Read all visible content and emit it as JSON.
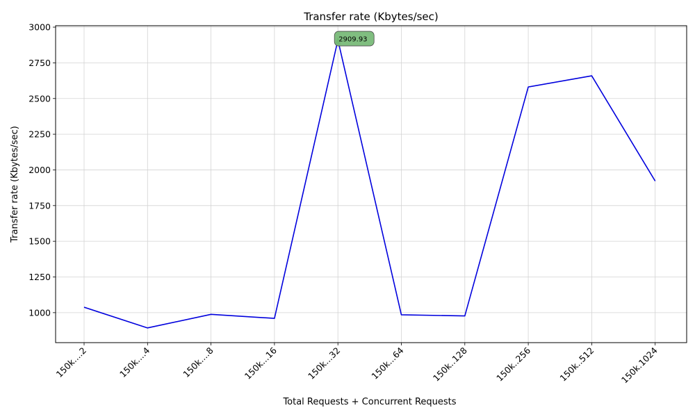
{
  "chart_data": {
    "type": "line",
    "title": "Transfer rate (Kbytes/sec)",
    "xlabel": "Total Requests + Concurrent Requests",
    "ylabel": "Transfer rate (Kbytes/sec)",
    "categories": [
      "150k....2",
      "150k....4",
      "150k....8",
      "150k...16",
      "150k...32",
      "150k...64",
      "150k..128",
      "150k..256",
      "150k..512",
      "150k.1024"
    ],
    "series": [
      {
        "values": [
          1038,
          893,
          988,
          960,
          2909.93,
          985,
          977,
          2581,
          2659,
          1922
        ]
      }
    ],
    "ylim": [
      790,
      3010
    ],
    "yticks": [
      1000,
      1250,
      1500,
      1750,
      2000,
      2250,
      2500,
      2750,
      3000
    ],
    "grid": true,
    "line_color": "#0000dd",
    "annotation": {
      "category_index": 4,
      "text": "2909.93",
      "box_color": "#79bb79",
      "arrow_color": "#008000"
    }
  }
}
